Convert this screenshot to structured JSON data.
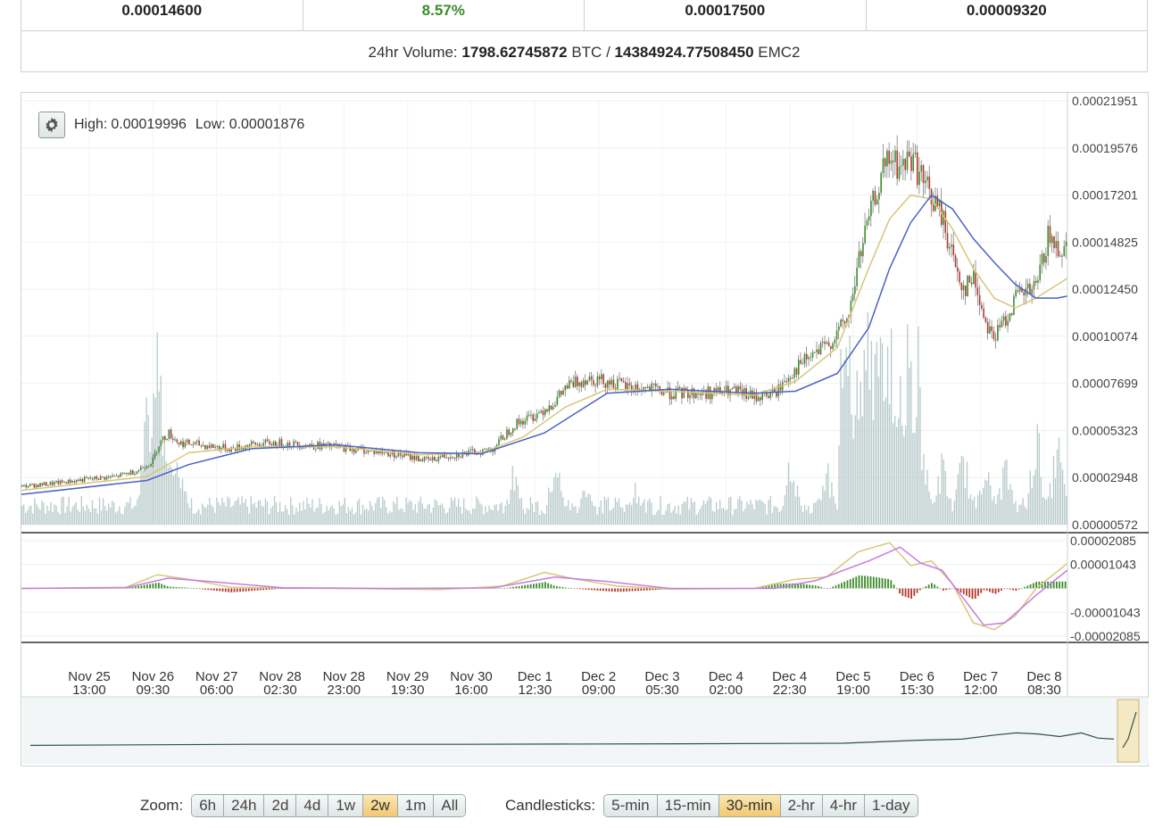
{
  "stats": [
    {
      "value": "0.00014600",
      "color": "#222222"
    },
    {
      "value": "8.57%",
      "color": "#3c8c2c"
    },
    {
      "value": "0.00017500",
      "color": "#222222"
    },
    {
      "value": "0.00009320",
      "color": "#222222"
    }
  ],
  "volume": {
    "label": "24hr Volume:",
    "btc": "1798.62745872",
    "btc_unit": "BTC",
    "separator": "/",
    "emc2": "14384924.77508450",
    "emc2_unit": "EMC2"
  },
  "hilo": {
    "high_label": "High:",
    "high_value": "0.00019996",
    "low_label": "Low:",
    "low_value": "0.00001876"
  },
  "zoom": {
    "label": "Zoom:",
    "options": [
      "6h",
      "24h",
      "2d",
      "4d",
      "1w",
      "2w",
      "1m",
      "All"
    ],
    "selected": "2w"
  },
  "candlesticks": {
    "label": "Candlesticks:",
    "options": [
      "5-min",
      "15-min",
      "30-min",
      "2-hr",
      "4-hr",
      "1-day"
    ],
    "selected": "30-min"
  },
  "colors": {
    "up": "#3c8c2c",
    "down": "#b03a2e",
    "ema_short": "#d8c67a",
    "ema_long": "#4a62c4",
    "volume": "#b7c9c9",
    "macd_line": "#d8c67a",
    "signal_line": "#c77ce0"
  },
  "chart_data": {
    "type": "candlestick",
    "price_axis_ticks": [
      "0.00021951",
      "0.00019576",
      "0.00017201",
      "0.00014825",
      "0.00012450",
      "0.00010074",
      "0.00007699",
      "0.00005323",
      "0.00002948",
      "0.00000572"
    ],
    "price_range": [
      5.72e-06,
      0.00021951
    ],
    "macd_axis_ticks": [
      "0.00002085",
      "0.00001043",
      "-0.00001043",
      "-0.00002085"
    ],
    "macd_range": [
      -2.085e-05,
      2.085e-05
    ],
    "x_ticks": [
      {
        "date": "Nov 25",
        "time": "13:00"
      },
      {
        "date": "Nov 26",
        "time": "09:30"
      },
      {
        "date": "Nov 27",
        "time": "06:00"
      },
      {
        "date": "Nov 28",
        "time": "02:30"
      },
      {
        "date": "Nov 28",
        "time": "23:00"
      },
      {
        "date": "Nov 29",
        "time": "19:30"
      },
      {
        "date": "Nov 30",
        "time": "16:00"
      },
      {
        "date": "Dec 1",
        "time": "12:30"
      },
      {
        "date": "Dec 2",
        "time": "09:00"
      },
      {
        "date": "Dec 3",
        "time": "05:30"
      },
      {
        "date": "Dec 4",
        "time": "02:00"
      },
      {
        "date": "Dec 4",
        "time": "22:30"
      },
      {
        "date": "Dec 5",
        "time": "19:00"
      },
      {
        "date": "Dec 6",
        "time": "15:30"
      },
      {
        "date": "Dec 7",
        "time": "12:00"
      },
      {
        "date": "Dec 8",
        "time": "08:30"
      }
    ],
    "price_points": [
      [
        0.0,
        2.5e-05
      ],
      [
        0.03,
        2.65e-05
      ],
      [
        0.06,
        2.85e-05
      ],
      [
        0.09,
        3e-05
      ],
      [
        0.11,
        3.3e-05
      ],
      [
        0.125,
        3.8e-05
      ],
      [
        0.13,
        4.6e-05
      ],
      [
        0.14,
        5.2e-05
      ],
      [
        0.15,
        4.7e-05
      ],
      [
        0.17,
        4.6e-05
      ],
      [
        0.2,
        4.4e-05
      ],
      [
        0.22,
        4.6e-05
      ],
      [
        0.24,
        4.7e-05
      ],
      [
        0.27,
        4.6e-05
      ],
      [
        0.3,
        4.5e-05
      ],
      [
        0.33,
        4.3e-05
      ],
      [
        0.36,
        4.1e-05
      ],
      [
        0.39,
        3.8e-05
      ],
      [
        0.4,
        4e-05
      ],
      [
        0.43,
        4.2e-05
      ],
      [
        0.45,
        4.4e-05
      ],
      [
        0.47,
        5.6e-05
      ],
      [
        0.49,
        6.1e-05
      ],
      [
        0.51,
        6.8e-05
      ],
      [
        0.52,
        7.5e-05
      ],
      [
        0.54,
        8e-05
      ],
      [
        0.56,
        7.8e-05
      ],
      [
        0.58,
        7.5e-05
      ],
      [
        0.6,
        7.4e-05
      ],
      [
        0.62,
        7.2e-05
      ],
      [
        0.65,
        7.2e-05
      ],
      [
        0.68,
        7.3e-05
      ],
      [
        0.7,
        7e-05
      ],
      [
        0.72,
        7.2e-05
      ],
      [
        0.735,
        8.2e-05
      ],
      [
        0.75,
        8.9e-05
      ],
      [
        0.77,
        9.6e-05
      ],
      [
        0.79,
        0.00011
      ],
      [
        0.8,
        0.00014
      ],
      [
        0.81,
        0.00016
      ],
      [
        0.82,
        0.00018
      ],
      [
        0.83,
        0.00019
      ],
      [
        0.84,
        0.000185
      ],
      [
        0.85,
        0.000192
      ],
      [
        0.86,
        0.00018
      ],
      [
        0.87,
        0.00017
      ],
      [
        0.88,
        0.00016
      ],
      [
        0.89,
        0.00014
      ],
      [
        0.9,
        0.000125
      ],
      [
        0.91,
        0.00013
      ],
      [
        0.92,
        0.00011
      ],
      [
        0.93,
        0.0001
      ],
      [
        0.94,
        0.00011
      ],
      [
        0.95,
        0.00012
      ],
      [
        0.97,
        0.000125
      ],
      [
        0.98,
        0.00015
      ],
      [
        0.99,
        0.000146
      ],
      [
        1.0,
        0.000146
      ]
    ],
    "ema_short_points": [
      [
        0.0,
        2.3e-05
      ],
      [
        0.12,
        3e-05
      ],
      [
        0.16,
        4.2e-05
      ],
      [
        0.22,
        4.5e-05
      ],
      [
        0.3,
        4.5e-05
      ],
      [
        0.38,
        4.1e-05
      ],
      [
        0.44,
        4.2e-05
      ],
      [
        0.48,
        5e-05
      ],
      [
        0.52,
        6.5e-05
      ],
      [
        0.56,
        7.4e-05
      ],
      [
        0.62,
        7.3e-05
      ],
      [
        0.7,
        7.1e-05
      ],
      [
        0.74,
        7.8e-05
      ],
      [
        0.78,
        9.5e-05
      ],
      [
        0.81,
        0.000135
      ],
      [
        0.83,
        0.00016
      ],
      [
        0.85,
        0.000172
      ],
      [
        0.87,
        0.00017
      ],
      [
        0.89,
        0.000155
      ],
      [
        0.91,
        0.000135
      ],
      [
        0.93,
        0.00012
      ],
      [
        0.95,
        0.000115
      ],
      [
        0.97,
        0.00012
      ],
      [
        1.0,
        0.00013
      ]
    ],
    "ema_long_points": [
      [
        0.0,
        2.1e-05
      ],
      [
        0.12,
        2.8e-05
      ],
      [
        0.16,
        3.6e-05
      ],
      [
        0.22,
        4.4e-05
      ],
      [
        0.3,
        4.6e-05
      ],
      [
        0.38,
        4.2e-05
      ],
      [
        0.44,
        4.15e-05
      ],
      [
        0.5,
        5.2e-05
      ],
      [
        0.56,
        7.2e-05
      ],
      [
        0.62,
        7.4e-05
      ],
      [
        0.7,
        7.2e-05
      ],
      [
        0.74,
        7.3e-05
      ],
      [
        0.78,
        8.2e-05
      ],
      [
        0.81,
        0.000105
      ],
      [
        0.83,
        0.000135
      ],
      [
        0.85,
        0.000158
      ],
      [
        0.87,
        0.000172
      ],
      [
        0.89,
        0.000165
      ],
      [
        0.91,
        0.00015
      ],
      [
        0.93,
        0.000138
      ],
      [
        0.95,
        0.000127
      ],
      [
        0.97,
        0.00012
      ],
      [
        0.99,
        0.00012
      ],
      [
        1.0,
        0.000121
      ]
    ],
    "volume_spikes": [
      [
        0.12,
        0.55
      ],
      [
        0.13,
        0.78
      ],
      [
        0.14,
        0.48
      ],
      [
        0.15,
        0.35
      ],
      [
        0.47,
        0.25
      ],
      [
        0.51,
        0.32
      ],
      [
        0.54,
        0.22
      ],
      [
        0.585,
        0.18
      ],
      [
        0.735,
        0.35
      ],
      [
        0.77,
        0.25
      ],
      [
        0.79,
        0.55
      ],
      [
        0.8,
        0.75
      ],
      [
        0.81,
        0.95
      ],
      [
        0.82,
        0.9
      ],
      [
        0.83,
        0.88
      ],
      [
        0.84,
        0.65
      ],
      [
        0.86,
        0.4
      ],
      [
        0.88,
        0.3
      ],
      [
        0.9,
        0.35
      ],
      [
        0.92,
        0.32
      ],
      [
        0.94,
        0.3
      ],
      [
        0.97,
        0.45
      ],
      [
        0.99,
        0.4
      ]
    ],
    "macd_points": [
      [
        0.0,
        0.0
      ],
      [
        0.1,
        5e-07
      ],
      [
        0.13,
        6e-06
      ],
      [
        0.16,
        4e-06
      ],
      [
        0.2,
        5e-07
      ],
      [
        0.3,
        0.0
      ],
      [
        0.4,
        -5e-07
      ],
      [
        0.46,
        1e-06
      ],
      [
        0.5,
        7e-06
      ],
      [
        0.53,
        4e-06
      ],
      [
        0.57,
        1e-06
      ],
      [
        0.62,
        -3e-07
      ],
      [
        0.7,
        0.0
      ],
      [
        0.74,
        4e-06
      ],
      [
        0.77,
        5e-06
      ],
      [
        0.8,
        1.6e-05
      ],
      [
        0.83,
        2e-05
      ],
      [
        0.85,
        1e-05
      ],
      [
        0.87,
        1.2e-05
      ],
      [
        0.89,
        2e-06
      ],
      [
        0.91,
        -1.5e-05
      ],
      [
        0.93,
        -1.8e-05
      ],
      [
        0.95,
        -1.2e-05
      ],
      [
        0.97,
        0.0
      ],
      [
        1.0,
        1.1e-05
      ]
    ],
    "signal_points": [
      [
        0.0,
        0.0
      ],
      [
        0.1,
        3e-07
      ],
      [
        0.14,
        4.5e-06
      ],
      [
        0.18,
        3e-06
      ],
      [
        0.25,
        3e-07
      ],
      [
        0.35,
        0.0
      ],
      [
        0.45,
        2e-07
      ],
      [
        0.51,
        5e-06
      ],
      [
        0.56,
        3e-06
      ],
      [
        0.62,
        0.0
      ],
      [
        0.72,
        0.0
      ],
      [
        0.76,
        3.5e-06
      ],
      [
        0.81,
        1.2e-05
      ],
      [
        0.84,
        1.8e-05
      ],
      [
        0.86,
        1.1e-05
      ],
      [
        0.88,
        8e-06
      ],
      [
        0.9,
        -4e-06
      ],
      [
        0.92,
        -1.6e-05
      ],
      [
        0.94,
        -1.5e-05
      ],
      [
        0.97,
        -3e-06
      ],
      [
        1.0,
        8e-06
      ]
    ],
    "navigator_points": [
      [
        0.0,
        0.08
      ],
      [
        0.2,
        0.1
      ],
      [
        0.4,
        0.1
      ],
      [
        0.6,
        0.11
      ],
      [
        0.75,
        0.12
      ],
      [
        0.82,
        0.18
      ],
      [
        0.86,
        0.2
      ],
      [
        0.89,
        0.28
      ],
      [
        0.91,
        0.32
      ],
      [
        0.93,
        0.3
      ],
      [
        0.95,
        0.25
      ],
      [
        0.97,
        0.32
      ],
      [
        0.985,
        0.22
      ],
      [
        1.0,
        0.2
      ]
    ]
  }
}
